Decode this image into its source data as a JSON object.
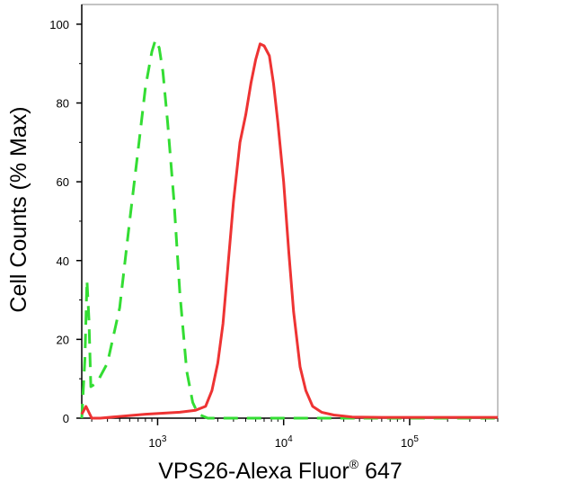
{
  "chart_data": {
    "type": "line",
    "title": "",
    "xlabel": "VPS26-Alexa Fluor",
    "xlabel_superscript": "®",
    "xlabel_suffix": " 647",
    "ylabel": "Cell Counts (% Max)",
    "x_scale": "log",
    "xlim": [
      250,
      500000
    ],
    "ylim": [
      0,
      105
    ],
    "x_ticks": [
      {
        "value": 1000,
        "base": "10",
        "exp": "3"
      },
      {
        "value": 10000,
        "base": "10",
        "exp": "4"
      },
      {
        "value": 100000,
        "base": "10",
        "exp": "5"
      }
    ],
    "y_ticks": [
      0,
      20,
      40,
      60,
      80,
      100
    ],
    "grid": false,
    "legend": "none",
    "series": [
      {
        "color": "#33dd33",
        "style": "dashed",
        "points": [
          [
            250,
            0
          ],
          [
            265,
            15
          ],
          [
            275,
            35
          ],
          [
            285,
            25
          ],
          [
            295,
            8
          ],
          [
            330,
            9
          ],
          [
            400,
            14
          ],
          [
            500,
            28
          ],
          [
            600,
            50
          ],
          [
            700,
            68
          ],
          [
            800,
            84
          ],
          [
            900,
            93
          ],
          [
            960,
            96
          ],
          [
            1030,
            94
          ],
          [
            1100,
            88
          ],
          [
            1200,
            75
          ],
          [
            1350,
            55
          ],
          [
            1500,
            32
          ],
          [
            1700,
            12
          ],
          [
            1900,
            4
          ],
          [
            2100,
            1
          ],
          [
            2500,
            0
          ],
          [
            5000,
            0
          ],
          [
            500000,
            0
          ]
        ]
      },
      {
        "color": "#ee3333",
        "style": "solid",
        "points": [
          [
            250,
            1
          ],
          [
            270,
            3
          ],
          [
            300,
            0
          ],
          [
            350,
            0
          ],
          [
            800,
            1
          ],
          [
            1500,
            1.5
          ],
          [
            2000,
            2
          ],
          [
            2400,
            3
          ],
          [
            2700,
            7
          ],
          [
            3000,
            14
          ],
          [
            3300,
            24
          ],
          [
            3600,
            38
          ],
          [
            4000,
            55
          ],
          [
            4500,
            70
          ],
          [
            5000,
            77
          ],
          [
            5500,
            85
          ],
          [
            6000,
            91
          ],
          [
            6500,
            95
          ],
          [
            7000,
            94.5
          ],
          [
            7700,
            92
          ],
          [
            8300,
            85
          ],
          [
            9000,
            75
          ],
          [
            10000,
            60
          ],
          [
            11000,
            42
          ],
          [
            12000,
            27
          ],
          [
            13500,
            13
          ],
          [
            15000,
            7
          ],
          [
            17000,
            3
          ],
          [
            20000,
            1.5
          ],
          [
            25000,
            0.8
          ],
          [
            35000,
            0.3
          ],
          [
            60000,
            0.2
          ],
          [
            500000,
            0.2
          ]
        ]
      }
    ]
  }
}
